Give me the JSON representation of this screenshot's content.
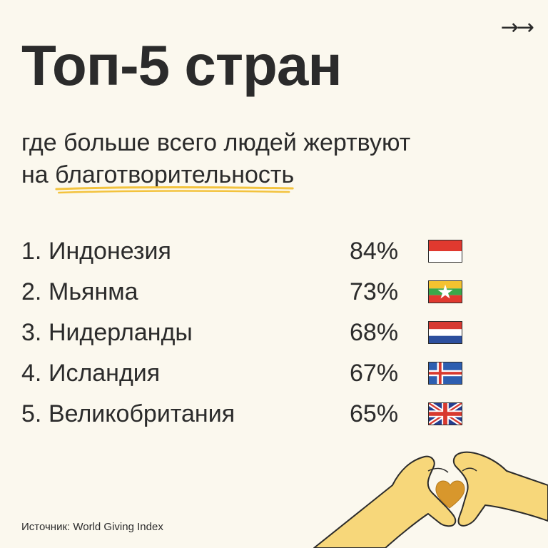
{
  "header": {
    "title": "Топ-5 стран",
    "subtitle_line1": "где больше всего людей жертвуют",
    "subtitle_line2_prefix": "на ",
    "subtitle_line2_highlight": "благотворительность",
    "arrow_icon": "double-arrow-right-icon",
    "arrows_glyph": "→→"
  },
  "ranking": [
    {
      "rank": "1.",
      "country": "Индонезия",
      "percent": "84%",
      "flag_icon": "flag-indonesia-icon"
    },
    {
      "rank": "2.",
      "country": "Мьянма",
      "percent": "73%",
      "flag_icon": "flag-myanmar-icon"
    },
    {
      "rank": "3.",
      "country": "Нидерланды",
      "percent": "68%",
      "flag_icon": "flag-netherlands-icon"
    },
    {
      "rank": "4.",
      "country": "Исландия",
      "percent": "67%",
      "flag_icon": "flag-iceland-icon"
    },
    {
      "rank": "5.",
      "country": "Великобритания",
      "percent": "65%",
      "flag_icon": "flag-uk-icon"
    }
  ],
  "footer": {
    "source": "Источник: World Giving Index"
  },
  "illustration": {
    "icon": "heart-hands-icon"
  },
  "colors": {
    "background": "#fbf8ee",
    "text": "#2b2b2b",
    "accent_yellow": "#f3c33e",
    "heart": "#d8972c",
    "skin": "#f7d77a"
  }
}
